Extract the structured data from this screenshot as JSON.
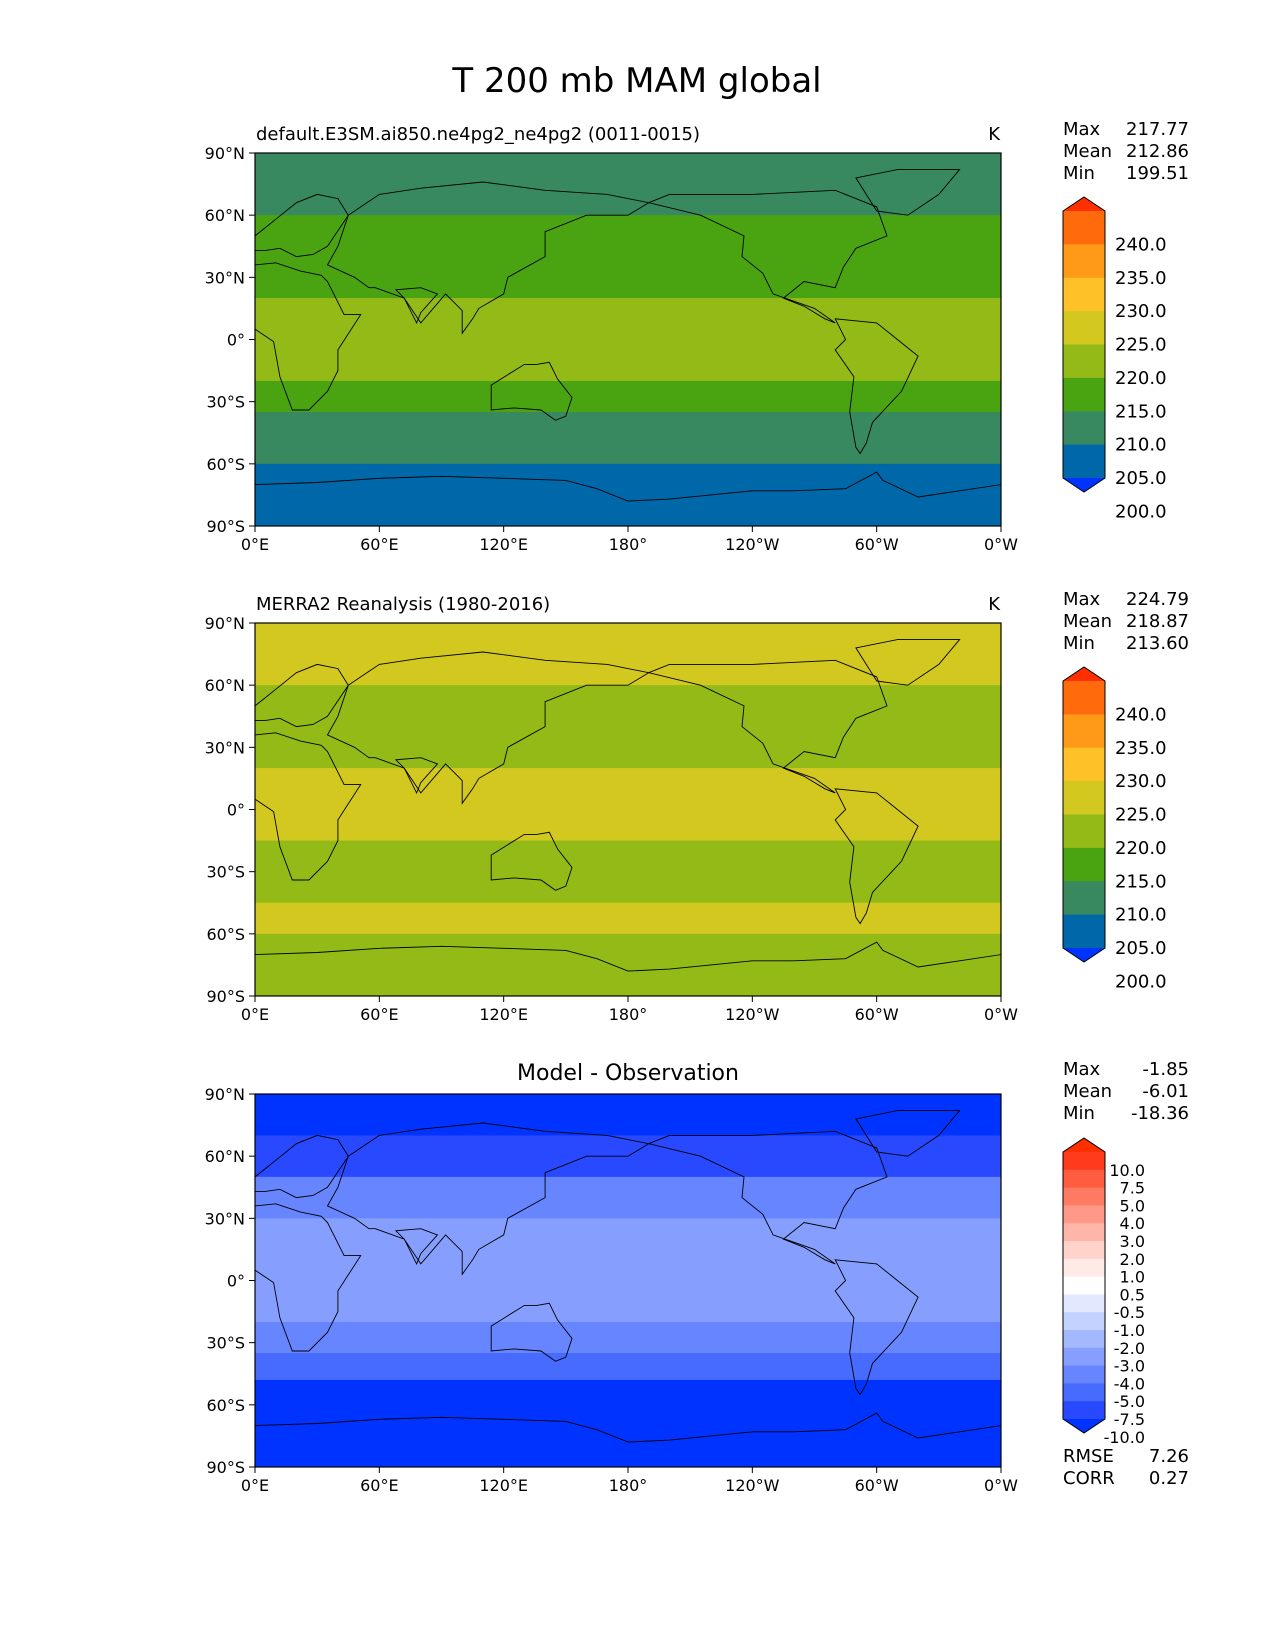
{
  "figure_title": "T 200 mb MAM global",
  "lon_ticks": [
    "0°E",
    "60°E",
    "120°E",
    "180°",
    "120°W",
    "60°W",
    "0°W"
  ],
  "lat_ticks": [
    "90°N",
    "60°N",
    "30°N",
    "0°",
    "30°S",
    "60°S",
    "90°S"
  ],
  "chart_data": [
    {
      "type": "heatmap",
      "title": "default.E3SM.ai850.ne4pg2_ne4pg2 (0011-0015)",
      "units": "K",
      "stats": {
        "max": "217.77",
        "mean": "212.86",
        "min": "199.51"
      },
      "stat_labels": [
        "Max",
        "Mean",
        "Min"
      ],
      "colorbar_levels": [
        "240.0",
        "235.0",
        "230.0",
        "225.0",
        "220.0",
        "215.0",
        "210.0",
        "205.0",
        "200.0"
      ],
      "colorbar_colors": [
        "#ff2f00",
        "#ff6a0c",
        "#ff9a19",
        "#ffc128",
        "#d2c81f",
        "#94ba18",
        "#4aa412",
        "#38895f",
        "#0068a8",
        "#0033ff"
      ],
      "bands_description": "zonal bands (lat_top, lat_bottom, value_K)",
      "bands": [
        [
          90,
          60,
          208
        ],
        [
          60,
          20,
          212
        ],
        [
          20,
          -20,
          217
        ],
        [
          -20,
          -35,
          212
        ],
        [
          -35,
          -60,
          207
        ],
        [
          -60,
          -90,
          203
        ]
      ]
    },
    {
      "type": "heatmap",
      "title": "MERRA2 Reanalysis (1980-2016)",
      "units": "K",
      "stats": {
        "max": "224.79",
        "mean": "218.87",
        "min": "213.60"
      },
      "stat_labels": [
        "Max",
        "Mean",
        "Min"
      ],
      "colorbar_levels": [
        "240.0",
        "235.0",
        "230.0",
        "225.0",
        "220.0",
        "215.0",
        "210.0",
        "205.0",
        "200.0"
      ],
      "colorbar_colors": [
        "#ff2f00",
        "#ff6a0c",
        "#ff9a19",
        "#ffc128",
        "#d2c81f",
        "#94ba18",
        "#4aa412",
        "#38895f",
        "#0068a8",
        "#0033ff"
      ],
      "bands_description": "zonal bands (lat_top, lat_bottom, value_K)",
      "bands": [
        [
          90,
          60,
          221
        ],
        [
          60,
          20,
          218
        ],
        [
          20,
          -15,
          221
        ],
        [
          -15,
          -45,
          218
        ],
        [
          -45,
          -60,
          221
        ],
        [
          -60,
          -90,
          218
        ]
      ]
    },
    {
      "type": "heatmap",
      "title": "Model - Observation",
      "units": "",
      "stats": {
        "max": "-1.85",
        "mean": "-6.01",
        "min": "-18.36"
      },
      "stat_labels": [
        "Max",
        "Mean",
        "Min"
      ],
      "colorbar_levels": [
        "10.0",
        "7.5",
        "5.0",
        "4.0",
        "3.0",
        "2.0",
        "1.0",
        "0.5",
        "-0.5",
        "-1.0",
        "-2.0",
        "-3.0",
        "-4.0",
        "-5.0",
        "-7.5",
        "-10.0"
      ],
      "colorbar_colors": [
        "#ff2f00",
        "#ff3b1c",
        "#ff5c40",
        "#ff7a62",
        "#ff9886",
        "#ffb6a8",
        "#ffd3ca",
        "#ffeae5",
        "#ffffff",
        "#e2e9ff",
        "#c3d2ff",
        "#a4b8ff",
        "#869fff",
        "#6785ff",
        "#476aff",
        "#2849ff",
        "#0033ff"
      ],
      "bands_description": "zonal bands (lat_top, lat_bottom, value_K)",
      "bands": [
        [
          90,
          70,
          -11
        ],
        [
          70,
          50,
          -7.8
        ],
        [
          50,
          30,
          -4.5
        ],
        [
          30,
          -20,
          -3.5
        ],
        [
          -20,
          -35,
          -4.5
        ],
        [
          -35,
          -48,
          -7
        ],
        [
          -48,
          -90,
          -11
        ]
      ],
      "rmse_label": "RMSE",
      "rmse": "7.26",
      "corr_label": "CORR",
      "corr": "0.27"
    }
  ],
  "colors": {
    "axis": "#000000",
    "coast": "#000000"
  }
}
